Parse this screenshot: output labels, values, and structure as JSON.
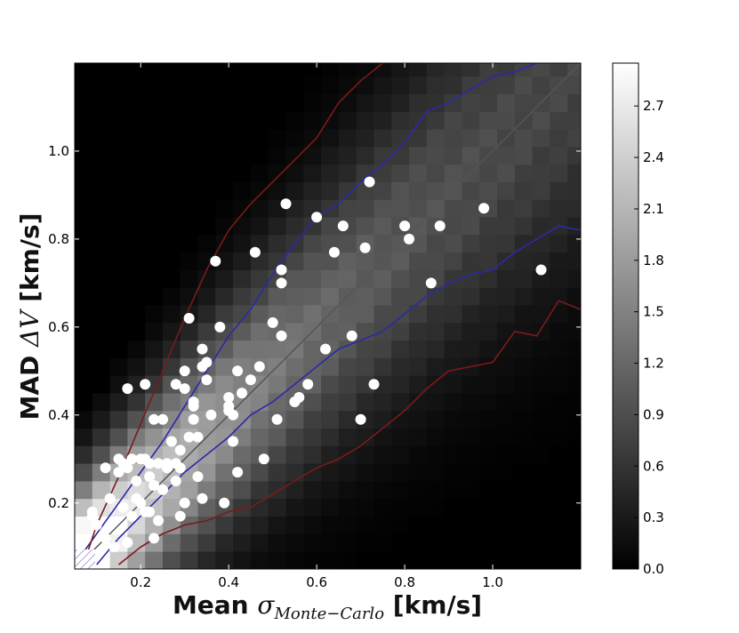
{
  "chart_data": {
    "type": "heatmap",
    "title": "",
    "xlabel": {
      "prefix": "Mean ",
      "symbol": "σ",
      "subscript": "Monte−Carlo",
      "suffix": " [km/s]"
    },
    "ylabel": {
      "prefix": "MAD ",
      "symbol": "ΔV",
      "suffix": " [km/s]"
    },
    "xlim": [
      0.05,
      1.2
    ],
    "ylim": [
      0.05,
      1.2
    ],
    "x_ticks": [
      0.2,
      0.4,
      0.6,
      0.8,
      1.0
    ],
    "x_tick_labels": [
      "0.2",
      "0.4",
      "0.6",
      "0.8",
      "1.0"
    ],
    "y_ticks": [
      0.2,
      0.4,
      0.6,
      0.8,
      1.0
    ],
    "y_tick_labels": [
      "0.2",
      "0.4",
      "0.6",
      "0.8",
      "1.0"
    ],
    "grid": false,
    "colorbar": {
      "min": 0.0,
      "max": 2.95,
      "ticks": [
        0.0,
        0.3,
        0.6,
        0.9,
        1.2,
        1.5,
        1.8,
        2.1,
        2.4,
        2.7
      ],
      "tick_labels": [
        "0.0",
        "0.3",
        "0.6",
        "0.9",
        "1.2",
        "1.5",
        "1.8",
        "2.1",
        "2.4",
        "2.7"
      ],
      "colormap": "gray"
    },
    "heatmap_bin_width": 0.04,
    "heatmap_description": "log density of Monte-Carlo samples concentrated along the 1:1 diagonal, brightest at small values",
    "contours": [
      {
        "color": "#2a2aa8",
        "x": [
          0.05,
          0.1,
          0.15,
          0.2,
          0.25,
          0.3,
          0.35,
          0.4,
          0.45,
          0.5,
          0.55,
          0.6,
          0.65,
          0.7,
          0.75,
          0.8,
          0.85,
          0.9,
          0.95,
          1.0,
          1.05,
          1.1,
          1.15,
          1.2
        ],
        "y": [
          0.06,
          0.13,
          0.2,
          0.27,
          0.34,
          0.42,
          0.5,
          0.58,
          0.64,
          0.72,
          0.79,
          0.85,
          0.88,
          0.93,
          0.97,
          1.02,
          1.09,
          1.11,
          1.14,
          1.17,
          1.18,
          1.2,
          1.21,
          1.2
        ]
      },
      {
        "color": "#2a2aa8",
        "x": [
          0.1,
          0.15,
          0.2,
          0.25,
          0.3,
          0.35,
          0.4,
          0.45,
          0.5,
          0.55,
          0.6,
          0.65,
          0.7,
          0.75,
          0.8,
          0.85,
          0.9,
          0.95,
          1.0,
          1.05,
          1.1,
          1.15,
          1.2
        ],
        "y": [
          0.06,
          0.12,
          0.17,
          0.22,
          0.27,
          0.31,
          0.35,
          0.4,
          0.43,
          0.47,
          0.51,
          0.55,
          0.57,
          0.59,
          0.63,
          0.67,
          0.7,
          0.72,
          0.73,
          0.77,
          0.8,
          0.83,
          0.82
        ]
      },
      {
        "color": "#7a1a1a",
        "x": [
          0.07,
          0.1,
          0.15,
          0.2,
          0.25,
          0.3,
          0.35,
          0.4,
          0.45,
          0.5,
          0.55,
          0.6,
          0.65,
          0.7,
          0.75,
          0.8
        ],
        "y": [
          0.06,
          0.15,
          0.26,
          0.38,
          0.5,
          0.62,
          0.73,
          0.82,
          0.88,
          0.93,
          0.98,
          1.03,
          1.11,
          1.16,
          1.2,
          1.24
        ]
      },
      {
        "color": "#7a1a1a",
        "x": [
          0.15,
          0.2,
          0.25,
          0.3,
          0.35,
          0.4,
          0.45,
          0.5,
          0.55,
          0.6,
          0.65,
          0.7,
          0.75,
          0.8,
          0.85,
          0.9,
          0.95,
          1.0,
          1.05,
          1.1,
          1.15,
          1.2
        ],
        "y": [
          0.06,
          0.1,
          0.13,
          0.15,
          0.16,
          0.18,
          0.19,
          0.22,
          0.25,
          0.28,
          0.3,
          0.33,
          0.37,
          0.41,
          0.46,
          0.5,
          0.51,
          0.52,
          0.59,
          0.58,
          0.66,
          0.64
        ]
      }
    ],
    "diagonal": {
      "color": "#555555",
      "from": [
        0.05,
        0.05
      ],
      "to": [
        1.2,
        1.2
      ]
    },
    "scatter_points": {
      "color": "#ffffff",
      "x": [
        0.09,
        0.1,
        0.12,
        0.13,
        0.14,
        0.15,
        0.15,
        0.16,
        0.16,
        0.17,
        0.17,
        0.18,
        0.19,
        0.19,
        0.2,
        0.2,
        0.21,
        0.21,
        0.22,
        0.22,
        0.22,
        0.23,
        0.23,
        0.24,
        0.24,
        0.25,
        0.25,
        0.26,
        0.27,
        0.28,
        0.28,
        0.28,
        0.29,
        0.29,
        0.3,
        0.3,
        0.31,
        0.31,
        0.32,
        0.32,
        0.33,
        0.33,
        0.34,
        0.34,
        0.35,
        0.35,
        0.36,
        0.37,
        0.38,
        0.4,
        0.4,
        0.41,
        0.41,
        0.42,
        0.42,
        0.43,
        0.46,
        0.47,
        0.48,
        0.5,
        0.51,
        0.52,
        0.52,
        0.52,
        0.53,
        0.55,
        0.56,
        0.58,
        0.6,
        0.62,
        0.64,
        0.66,
        0.68,
        0.7,
        0.71,
        0.72,
        0.73,
        0.8,
        0.81,
        0.86,
        0.88,
        0.98,
        1.11,
        0.17,
        0.21,
        0.4,
        0.45,
        0.39,
        0.32,
        0.3,
        0.26,
        0.23,
        0.12,
        0.09,
        0.34,
        0.29,
        0.18
      ],
      "y": [
        0.17,
        0.15,
        0.12,
        0.21,
        0.1,
        0.27,
        0.3,
        0.19,
        0.29,
        0.28,
        0.11,
        0.3,
        0.25,
        0.21,
        0.3,
        0.2,
        0.18,
        0.3,
        0.26,
        0.18,
        0.29,
        0.24,
        0.12,
        0.29,
        0.16,
        0.23,
        0.39,
        0.28,
        0.34,
        0.29,
        0.47,
        0.25,
        0.32,
        0.28,
        0.5,
        0.46,
        0.62,
        0.35,
        0.39,
        0.43,
        0.35,
        0.26,
        0.51,
        0.55,
        0.52,
        0.48,
        0.4,
        0.75,
        0.6,
        0.44,
        0.42,
        0.4,
        0.34,
        0.27,
        0.5,
        0.45,
        0.77,
        0.51,
        0.3,
        0.61,
        0.39,
        0.58,
        0.73,
        0.7,
        0.88,
        0.43,
        0.44,
        0.47,
        0.85,
        0.55,
        0.77,
        0.83,
        0.58,
        0.39,
        0.78,
        0.93,
        0.47,
        0.83,
        0.8,
        0.7,
        0.83,
        0.87,
        0.73,
        0.46,
        0.47,
        0.41,
        0.48,
        0.2,
        0.42,
        0.2,
        0.29,
        0.39,
        0.28,
        0.18,
        0.21,
        0.17,
        0.17
      ]
    }
  }
}
